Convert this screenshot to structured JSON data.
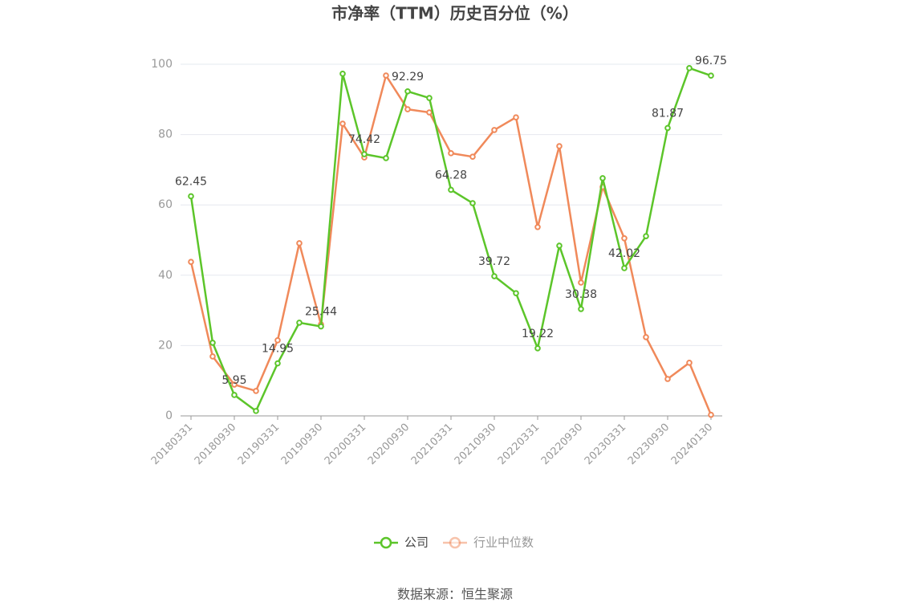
{
  "chart_data": {
    "type": "line",
    "title": "市净率（TTM）历史百分位（%）",
    "source": "数据来源：恒生聚源",
    "categories": [
      "20180331",
      null,
      "20180930",
      null,
      "20190331",
      null,
      "20190930",
      null,
      "20200331",
      null,
      "20200930",
      null,
      "20210331",
      null,
      "20210930",
      null,
      "20220331",
      null,
      "20220930",
      null,
      "20230331",
      null,
      "20230930",
      null,
      "20240130"
    ],
    "series": [
      {
        "name": "公司",
        "color": "#5cc52a",
        "values": [
          62.45,
          20.8,
          5.95,
          1.4,
          14.95,
          26.5,
          25.44,
          97.3,
          74.42,
          73.3,
          92.29,
          90.4,
          64.28,
          60.5,
          39.72,
          34.9,
          19.22,
          48.4,
          30.38,
          67.6,
          42.02,
          51.1,
          81.87,
          98.9,
          96.75
        ],
        "value_labels": [
          "62.45",
          null,
          "5.95",
          null,
          "14.95",
          null,
          "25.44",
          null,
          "74.42",
          null,
          "92.29",
          null,
          "64.28",
          null,
          "39.72",
          null,
          "19.22",
          null,
          "30.38",
          null,
          "42.02",
          null,
          "81.87",
          null,
          "96.75"
        ]
      },
      {
        "name": "行业中位数",
        "color": "#f0895a",
        "values": [
          43.8,
          16.9,
          8.9,
          7.1,
          21.5,
          49.1,
          26,
          83.1,
          73.5,
          96.8,
          87.2,
          86.3,
          74.7,
          73.7,
          81.3,
          84.9,
          53.7,
          76.7,
          37.9,
          65.1,
          50.5,
          22.4,
          10.5,
          15.1,
          0.3
        ]
      }
    ],
    "ylim": [
      0,
      100
    ],
    "yticks": [
      0,
      20,
      40,
      60,
      80,
      100
    ],
    "grid": true
  }
}
